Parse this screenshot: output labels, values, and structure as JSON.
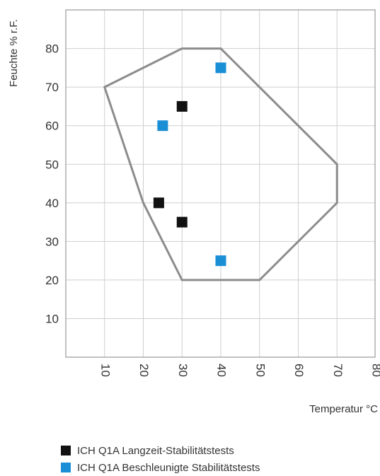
{
  "chart_data": {
    "type": "scatter",
    "ylabel": "Feuchte % r.F.",
    "xlabel": "Temperatur °C",
    "xlim": [
      0,
      80
    ],
    "ylim": [
      0,
      85
    ],
    "x_ticks": [
      10,
      20,
      30,
      40,
      50,
      60,
      70,
      80
    ],
    "y_ticks": [
      10,
      20,
      30,
      40,
      50,
      60,
      70,
      80
    ],
    "grid": true,
    "region": {
      "color": "#8c8c8c",
      "points": [
        [
          10,
          70
        ],
        [
          30,
          80
        ],
        [
          40,
          80
        ],
        [
          70,
          50
        ],
        [
          70,
          40
        ],
        [
          50,
          20
        ],
        [
          30,
          20
        ],
        [
          20,
          40
        ]
      ]
    },
    "series": [
      {
        "name": "ICH Q1A Langzeit-Stabilitätstests",
        "color": "#111111",
        "points": [
          [
            30,
            65
          ],
          [
            24,
            40
          ],
          [
            30,
            35
          ]
        ]
      },
      {
        "name": "ICH Q1A Beschleunigte Stabilitätstests",
        "color": "#1a8fd6",
        "points": [
          [
            40,
            75
          ],
          [
            25,
            60
          ],
          [
            40,
            25
          ]
        ]
      }
    ]
  }
}
